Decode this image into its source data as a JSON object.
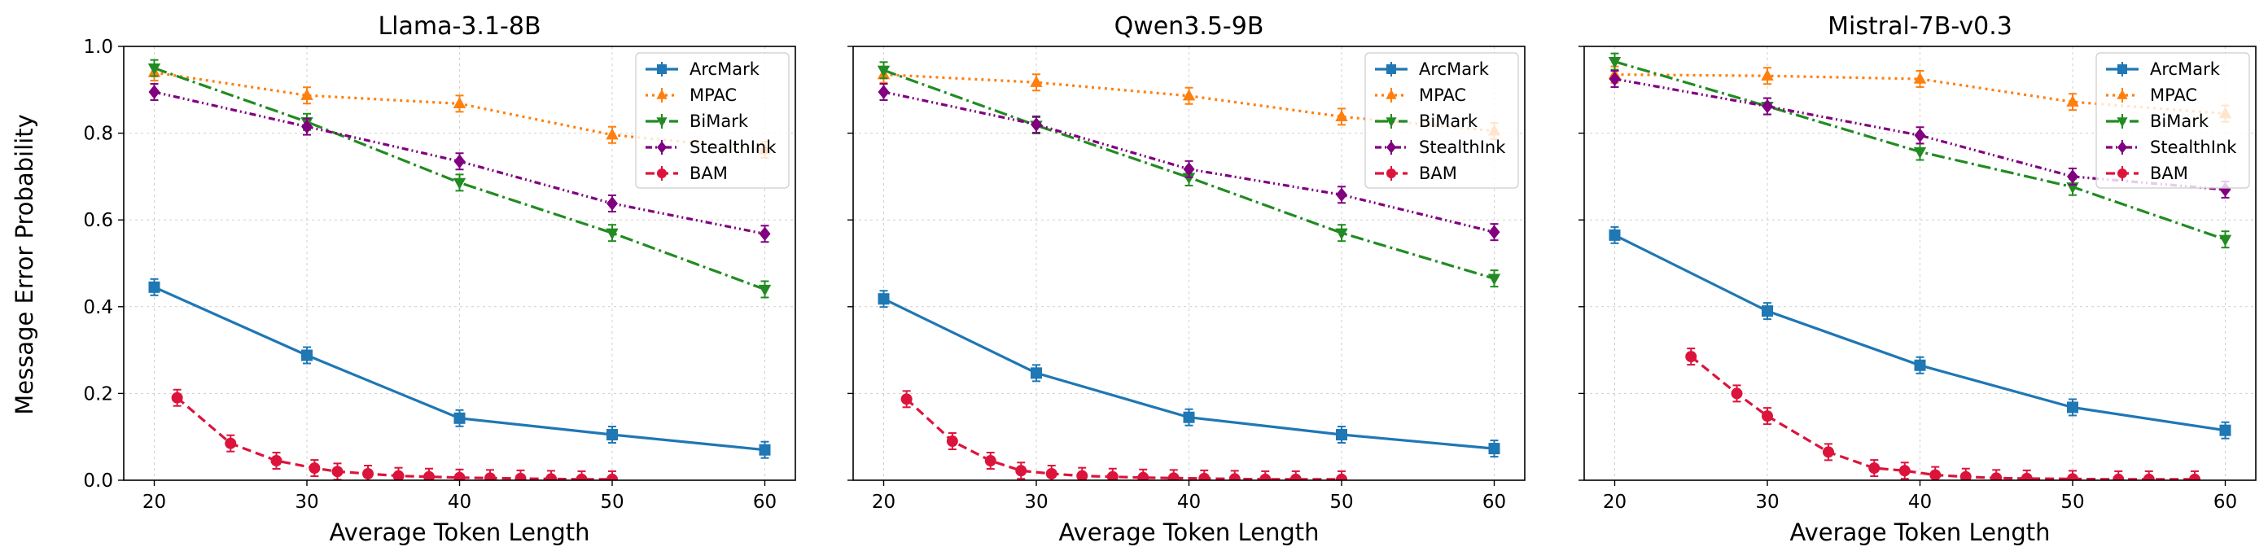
{
  "figure": {
    "ylabel": "Message Error Probability",
    "xlabel": "Average Token Length"
  },
  "series_styles": [
    {
      "name": "ArcMark",
      "color": "#1f77b4",
      "dash": "",
      "marker": "square"
    },
    {
      "name": "MPAC",
      "color": "#ff7f0e",
      "dash": "3,5",
      "marker": "triangle-up"
    },
    {
      "name": "BiMark",
      "color": "#228b22",
      "dash": "16,5,3,5",
      "marker": "triangle-down"
    },
    {
      "name": "StealthInk",
      "color": "#800080",
      "dash": "8,4,2,4,2,4",
      "marker": "diamond"
    },
    {
      "name": "BAM",
      "color": "#dc143c",
      "dash": "11,6",
      "marker": "circle"
    }
  ],
  "chart_data": [
    {
      "type": "line",
      "title": "Llama-3.1-8B",
      "xlabel": "Average Token Length",
      "ylabel": "Message Error Probability",
      "xlim": [
        18,
        62
      ],
      "ylim": [
        0,
        1.0
      ],
      "xticks": [
        20,
        30,
        40,
        50,
        60
      ],
      "yticks": [
        0.0,
        0.2,
        0.4,
        0.6,
        0.8,
        1.0
      ],
      "grid": true,
      "legend": "top-right",
      "series": [
        {
          "name": "ArcMark",
          "x": [
            20,
            30,
            40,
            50,
            60
          ],
          "y": [
            0.445,
            0.288,
            0.143,
            0.105,
            0.07
          ]
        },
        {
          "name": "MPAC",
          "x": [
            20,
            30,
            40,
            50,
            60
          ],
          "y": [
            0.94,
            0.887,
            0.868,
            0.796,
            0.762
          ]
        },
        {
          "name": "BiMark",
          "x": [
            20,
            30,
            40,
            50,
            60
          ],
          "y": [
            0.95,
            0.826,
            0.686,
            0.57,
            0.44
          ]
        },
        {
          "name": "StealthInk",
          "x": [
            20,
            30,
            40,
            50,
            60
          ],
          "y": [
            0.895,
            0.815,
            0.735,
            0.638,
            0.568
          ]
        },
        {
          "name": "BAM",
          "x": [
            21.5,
            25,
            28,
            30.5,
            32,
            34,
            36,
            38,
            40,
            42,
            44,
            46,
            48,
            50
          ],
          "y": [
            0.19,
            0.085,
            0.045,
            0.028,
            0.02,
            0.015,
            0.01,
            0.008,
            0.006,
            0.005,
            0.004,
            0.003,
            0.002,
            0.002
          ]
        }
      ]
    },
    {
      "type": "line",
      "title": "Qwen3.5-9B",
      "xlabel": "Average Token Length",
      "ylabel": "",
      "xlim": [
        18,
        62
      ],
      "ylim": [
        0,
        1.0
      ],
      "xticks": [
        20,
        30,
        40,
        50,
        60
      ],
      "yticks": [
        0.0,
        0.2,
        0.4,
        0.6,
        0.8,
        1.0
      ],
      "grid": true,
      "legend": "top-right",
      "series": [
        {
          "name": "ArcMark",
          "x": [
            20,
            30,
            40,
            50,
            60
          ],
          "y": [
            0.418,
            0.247,
            0.145,
            0.105,
            0.073
          ]
        },
        {
          "name": "MPAC",
          "x": [
            20,
            30,
            40,
            50,
            60
          ],
          "y": [
            0.935,
            0.917,
            0.886,
            0.838,
            0.805
          ]
        },
        {
          "name": "BiMark",
          "x": [
            20,
            30,
            40,
            50,
            60
          ],
          "y": [
            0.945,
            0.818,
            0.698,
            0.57,
            0.465
          ]
        },
        {
          "name": "StealthInk",
          "x": [
            20,
            30,
            40,
            50,
            60
          ],
          "y": [
            0.895,
            0.82,
            0.717,
            0.658,
            0.572
          ]
        },
        {
          "name": "BAM",
          "x": [
            21.5,
            24.5,
            27,
            29,
            31,
            33,
            35,
            37,
            39,
            41,
            43,
            45,
            47,
            50
          ],
          "y": [
            0.187,
            0.09,
            0.045,
            0.022,
            0.015,
            0.01,
            0.008,
            0.006,
            0.005,
            0.004,
            0.003,
            0.002,
            0.002,
            0.002
          ]
        }
      ]
    },
    {
      "type": "line",
      "title": "Mistral-7B-v0.3",
      "xlabel": "Average Token Length",
      "ylabel": "",
      "xlim": [
        18,
        62
      ],
      "ylim": [
        0,
        1.0
      ],
      "xticks": [
        20,
        30,
        40,
        50,
        60
      ],
      "yticks": [
        0.0,
        0.2,
        0.4,
        0.6,
        0.8,
        1.0
      ],
      "grid": true,
      "legend": "top-right",
      "series": [
        {
          "name": "ArcMark",
          "x": [
            20,
            30,
            40,
            50,
            60
          ],
          "y": [
            0.565,
            0.39,
            0.265,
            0.168,
            0.115
          ]
        },
        {
          "name": "MPAC",
          "x": [
            20,
            30,
            40,
            50,
            60
          ],
          "y": [
            0.935,
            0.932,
            0.925,
            0.872,
            0.845
          ]
        },
        {
          "name": "BiMark",
          "x": [
            20,
            30,
            40,
            50,
            60
          ],
          "y": [
            0.965,
            0.862,
            0.757,
            0.676,
            0.555
          ]
        },
        {
          "name": "StealthInk",
          "x": [
            20,
            30,
            40,
            50,
            60
          ],
          "y": [
            0.925,
            0.862,
            0.795,
            0.7,
            0.67
          ]
        },
        {
          "name": "BAM",
          "x": [
            25,
            28,
            30,
            34,
            37,
            39,
            41,
            43,
            45,
            47,
            50,
            53,
            55,
            58
          ],
          "y": [
            0.285,
            0.2,
            0.148,
            0.065,
            0.028,
            0.022,
            0.012,
            0.008,
            0.005,
            0.004,
            0.003,
            0.002,
            0.002,
            0.002
          ]
        }
      ]
    }
  ]
}
